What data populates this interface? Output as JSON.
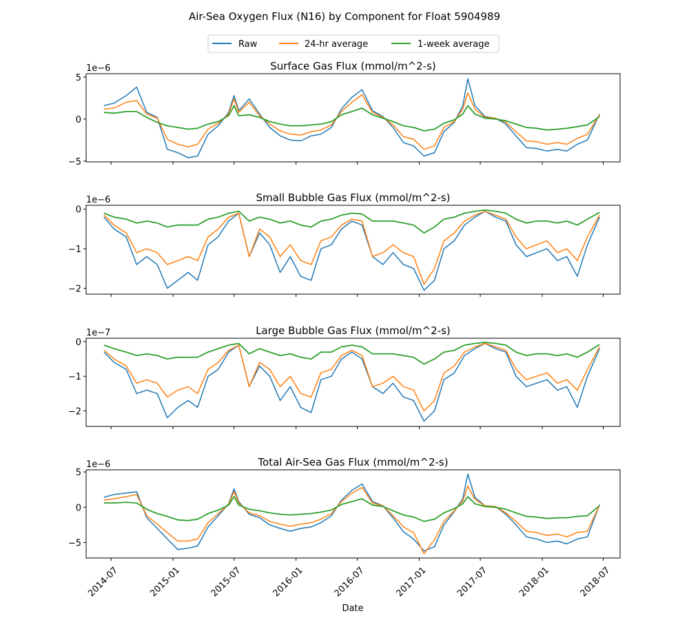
{
  "figure": {
    "title": "Air-Sea Oxygen Flux (N16) by Component for Float 5904989",
    "xlabel": "Date",
    "legend": {
      "placement": "top-center",
      "entries": [
        {
          "name": "Raw",
          "color": "#1f77b4"
        },
        {
          "name": "24-hr average",
          "color": "#ff7f0e"
        },
        {
          "name": "1-week average",
          "color": "#2ca02c"
        }
      ]
    },
    "x_tick_labels": [
      "2014-07",
      "2015-01",
      "2015-07",
      "2016-01",
      "2016-07",
      "2017-01",
      "2017-07",
      "2018-01",
      "2018-07"
    ]
  },
  "chart_data": [
    {
      "type": "line",
      "title": "Surface Gas Flux (mmol/m^2-s)",
      "offset_text": "1e−6",
      "ylim": [
        -5.1,
        5.4
      ],
      "yticks": [
        {
          "value": 5,
          "label": "5"
        },
        {
          "value": 0,
          "label": "0"
        },
        {
          "value": -5,
          "label": "−5"
        }
      ],
      "xlim": [
        "2014-04-18",
        "2018-08-20"
      ],
      "grid": false,
      "x": [
        "2014-06-10",
        "2014-07-10",
        "2014-08-15",
        "2014-09-15",
        "2014-10-15",
        "2014-11-15",
        "2014-12-15",
        "2015-01-15",
        "2015-02-15",
        "2015-03-15",
        "2015-04-15",
        "2015-05-15",
        "2015-06-15",
        "2015-07-01",
        "2015-07-15",
        "2015-08-15",
        "2015-09-15",
        "2015-10-15",
        "2015-11-15",
        "2015-12-15",
        "2016-01-15",
        "2016-02-15",
        "2016-03-15",
        "2016-04-15",
        "2016-05-15",
        "2016-06-15",
        "2016-07-15",
        "2016-08-15",
        "2016-09-15",
        "2016-10-15",
        "2016-11-15",
        "2016-12-15",
        "2017-01-15",
        "2017-02-15",
        "2017-03-15",
        "2017-04-15",
        "2017-05-10",
        "2017-05-25",
        "2017-06-15",
        "2017-07-15",
        "2017-08-15",
        "2017-09-15",
        "2017-10-15",
        "2017-11-15",
        "2017-12-15",
        "2018-01-15",
        "2018-02-15",
        "2018-03-15",
        "2018-04-15",
        "2018-05-15",
        "2018-06-20"
      ],
      "series": [
        {
          "name": "Raw",
          "values": [
            1.6,
            1.9,
            2.8,
            3.8,
            0.8,
            0.2,
            -3.6,
            -4.0,
            -4.6,
            -4.4,
            -1.8,
            -0.8,
            0.8,
            2.8,
            1.0,
            2.4,
            0.6,
            -1.0,
            -2.0,
            -2.5,
            -2.6,
            -2.0,
            -1.8,
            -1.0,
            1.2,
            2.6,
            3.5,
            1.0,
            0.3,
            -1.0,
            -2.8,
            -3.2,
            -4.4,
            -4.0,
            -1.5,
            -0.4,
            1.6,
            4.8,
            1.6,
            0.3,
            0.1,
            -0.6,
            -2.0,
            -3.4,
            -3.5,
            -3.8,
            -3.6,
            -3.8,
            -3.0,
            -2.5,
            0.6
          ]
        },
        {
          "name": "24-hr average",
          "values": [
            1.2,
            1.3,
            2.0,
            2.2,
            0.6,
            0.1,
            -2.4,
            -3.0,
            -3.3,
            -3.0,
            -1.2,
            -0.5,
            0.6,
            2.4,
            0.8,
            2.0,
            0.4,
            -0.6,
            -1.4,
            -1.8,
            -1.9,
            -1.5,
            -1.3,
            -0.7,
            0.9,
            2.0,
            2.9,
            0.8,
            0.2,
            -0.7,
            -2.1,
            -2.4,
            -3.6,
            -3.2,
            -1.0,
            -0.3,
            1.2,
            3.1,
            1.2,
            0.2,
            0.1,
            -0.4,
            -1.5,
            -2.6,
            -2.7,
            -3.0,
            -2.8,
            -3.0,
            -2.3,
            -1.8,
            0.5
          ]
        },
        {
          "name": "1-week average",
          "values": [
            0.8,
            0.7,
            0.9,
            0.9,
            0.2,
            -0.4,
            -0.8,
            -1.0,
            -1.2,
            -1.1,
            -0.6,
            -0.3,
            0.4,
            1.6,
            0.4,
            0.5,
            0.2,
            -0.3,
            -0.6,
            -0.8,
            -0.8,
            -0.7,
            -0.6,
            -0.3,
            0.5,
            0.9,
            1.3,
            0.5,
            0.1,
            -0.3,
            -0.8,
            -1.0,
            -1.4,
            -1.2,
            -0.5,
            -0.1,
            0.6,
            1.6,
            0.6,
            0.1,
            0.0,
            -0.2,
            -0.6,
            -1.0,
            -1.1,
            -1.3,
            -1.2,
            -1.1,
            -0.9,
            -0.7,
            0.3
          ]
        }
      ]
    },
    {
      "type": "line",
      "title": "Small Bubble Gas Flux (mmol/m^2-s)",
      "offset_text": "1e−6",
      "ylim": [
        -2.15,
        0.1
      ],
      "yticks": [
        {
          "value": 0,
          "label": "0"
        },
        {
          "value": -1,
          "label": "−1"
        },
        {
          "value": -2,
          "label": "−2"
        }
      ],
      "xlim": [
        "2014-04-18",
        "2018-08-20"
      ],
      "grid": false,
      "x": [
        "2014-06-10",
        "2014-07-10",
        "2014-08-15",
        "2014-09-15",
        "2014-10-15",
        "2014-11-15",
        "2014-12-15",
        "2015-01-15",
        "2015-02-15",
        "2015-03-15",
        "2015-04-15",
        "2015-05-15",
        "2015-06-15",
        "2015-07-15",
        "2015-08-15",
        "2015-09-15",
        "2015-10-15",
        "2015-11-15",
        "2015-12-15",
        "2016-01-15",
        "2016-02-15",
        "2016-03-15",
        "2016-04-15",
        "2016-05-15",
        "2016-06-15",
        "2016-07-15",
        "2016-08-15",
        "2016-09-15",
        "2016-10-15",
        "2016-11-15",
        "2016-12-15",
        "2017-01-15",
        "2017-02-15",
        "2017-03-15",
        "2017-04-15",
        "2017-05-15",
        "2017-06-15",
        "2017-07-15",
        "2017-08-15",
        "2017-09-15",
        "2017-10-15",
        "2017-11-15",
        "2017-12-15",
        "2018-01-15",
        "2018-02-15",
        "2018-03-15",
        "2018-04-15",
        "2018-05-15",
        "2018-06-20"
      ],
      "series": [
        {
          "name": "Raw",
          "values": [
            -0.2,
            -0.5,
            -0.7,
            -1.4,
            -1.2,
            -1.4,
            -2.0,
            -1.8,
            -1.6,
            -1.8,
            -0.9,
            -0.7,
            -0.3,
            -0.1,
            -1.2,
            -0.6,
            -0.9,
            -1.6,
            -1.2,
            -1.7,
            -1.8,
            -1.0,
            -0.9,
            -0.5,
            -0.3,
            -0.4,
            -1.2,
            -1.4,
            -1.1,
            -1.4,
            -1.5,
            -2.05,
            -1.8,
            -1.0,
            -0.8,
            -0.4,
            -0.2,
            -0.05,
            -0.2,
            -0.3,
            -0.9,
            -1.2,
            -1.1,
            -1.0,
            -1.3,
            -1.2,
            -1.7,
            -0.9,
            -0.2
          ]
        },
        {
          "name": "24-hr average",
          "values": [
            -0.15,
            -0.4,
            -0.6,
            -1.1,
            -1.0,
            -1.1,
            -1.4,
            -1.3,
            -1.2,
            -1.3,
            -0.7,
            -0.5,
            -0.2,
            -0.1,
            -1.2,
            -0.5,
            -0.7,
            -1.2,
            -0.9,
            -1.3,
            -1.4,
            -0.8,
            -0.7,
            -0.4,
            -0.25,
            -0.3,
            -1.2,
            -1.1,
            -0.9,
            -1.1,
            -1.2,
            -1.9,
            -1.5,
            -0.8,
            -0.6,
            -0.3,
            -0.15,
            -0.05,
            -0.15,
            -0.25,
            -0.7,
            -1.0,
            -0.9,
            -0.8,
            -1.1,
            -1.0,
            -1.3,
            -0.7,
            -0.15
          ]
        },
        {
          "name": "1-week average",
          "values": [
            -0.1,
            -0.2,
            -0.25,
            -0.35,
            -0.3,
            -0.35,
            -0.45,
            -0.4,
            -0.4,
            -0.4,
            -0.25,
            -0.2,
            -0.1,
            -0.05,
            -0.3,
            -0.2,
            -0.25,
            -0.35,
            -0.3,
            -0.4,
            -0.45,
            -0.3,
            -0.25,
            -0.15,
            -0.1,
            -0.12,
            -0.3,
            -0.3,
            -0.3,
            -0.35,
            -0.4,
            -0.6,
            -0.45,
            -0.25,
            -0.2,
            -0.1,
            -0.05,
            -0.02,
            -0.05,
            -0.1,
            -0.25,
            -0.35,
            -0.3,
            -0.3,
            -0.35,
            -0.3,
            -0.4,
            -0.25,
            -0.08
          ]
        }
      ]
    },
    {
      "type": "line",
      "title": "Large Bubble Gas Flux (mmol/m^2-s)",
      "offset_text": "1e−7",
      "ylim": [
        -2.45,
        0.1
      ],
      "yticks": [
        {
          "value": 0,
          "label": "0"
        },
        {
          "value": -1,
          "label": "−1"
        },
        {
          "value": -2,
          "label": "−2"
        }
      ],
      "xlim": [
        "2014-04-18",
        "2018-08-20"
      ],
      "grid": false,
      "x": [
        "2014-06-10",
        "2014-07-10",
        "2014-08-15",
        "2014-09-15",
        "2014-10-15",
        "2014-11-15",
        "2014-12-15",
        "2015-01-15",
        "2015-02-15",
        "2015-03-15",
        "2015-04-15",
        "2015-05-15",
        "2015-06-15",
        "2015-07-15",
        "2015-08-15",
        "2015-09-15",
        "2015-10-15",
        "2015-11-15",
        "2015-12-15",
        "2016-01-15",
        "2016-02-15",
        "2016-03-15",
        "2016-04-15",
        "2016-05-15",
        "2016-06-15",
        "2016-07-15",
        "2016-08-15",
        "2016-09-15",
        "2016-10-15",
        "2016-11-15",
        "2016-12-15",
        "2017-01-15",
        "2017-02-15",
        "2017-03-15",
        "2017-04-15",
        "2017-05-15",
        "2017-06-15",
        "2017-07-15",
        "2017-08-15",
        "2017-09-15",
        "2017-10-15",
        "2017-11-15",
        "2017-12-15",
        "2018-01-15",
        "2018-02-15",
        "2018-03-15",
        "2018-04-15",
        "2018-05-15",
        "2018-06-20"
      ],
      "series": [
        {
          "name": "Raw",
          "values": [
            -0.3,
            -0.6,
            -0.8,
            -1.5,
            -1.4,
            -1.5,
            -2.2,
            -1.9,
            -1.7,
            -1.9,
            -1.0,
            -0.8,
            -0.3,
            -0.1,
            -1.3,
            -0.7,
            -1.0,
            -1.7,
            -1.3,
            -1.9,
            -2.05,
            -1.1,
            -1.0,
            -0.5,
            -0.3,
            -0.5,
            -1.3,
            -1.5,
            -1.2,
            -1.6,
            -1.7,
            -2.3,
            -2.0,
            -1.1,
            -0.9,
            -0.4,
            -0.2,
            -0.05,
            -0.2,
            -0.3,
            -1.0,
            -1.3,
            -1.2,
            -1.1,
            -1.4,
            -1.3,
            -1.9,
            -1.0,
            -0.2
          ]
        },
        {
          "name": "24-hr average",
          "values": [
            -0.25,
            -0.5,
            -0.7,
            -1.2,
            -1.1,
            -1.2,
            -1.6,
            -1.4,
            -1.3,
            -1.5,
            -0.8,
            -0.6,
            -0.25,
            -0.1,
            -1.3,
            -0.6,
            -0.8,
            -1.3,
            -1.0,
            -1.5,
            -1.6,
            -0.9,
            -0.8,
            -0.4,
            -0.25,
            -0.4,
            -1.3,
            -1.2,
            -1.0,
            -1.3,
            -1.4,
            -2.0,
            -1.7,
            -0.9,
            -0.7,
            -0.3,
            -0.15,
            -0.05,
            -0.15,
            -0.25,
            -0.8,
            -1.1,
            -1.0,
            -0.9,
            -1.2,
            -1.1,
            -1.4,
            -0.8,
            -0.15
          ]
        },
        {
          "name": "1-week average",
          "values": [
            -0.1,
            -0.2,
            -0.3,
            -0.4,
            -0.35,
            -0.4,
            -0.5,
            -0.45,
            -0.45,
            -0.45,
            -0.3,
            -0.2,
            -0.1,
            -0.05,
            -0.35,
            -0.2,
            -0.3,
            -0.4,
            -0.35,
            -0.45,
            -0.5,
            -0.3,
            -0.3,
            -0.15,
            -0.1,
            -0.15,
            -0.35,
            -0.35,
            -0.35,
            -0.4,
            -0.45,
            -0.65,
            -0.5,
            -0.3,
            -0.25,
            -0.1,
            -0.05,
            -0.02,
            -0.05,
            -0.1,
            -0.3,
            -0.4,
            -0.35,
            -0.35,
            -0.4,
            -0.35,
            -0.45,
            -0.3,
            -0.08
          ]
        }
      ]
    },
    {
      "type": "line",
      "title": "Total Air-Sea Gas Flux (mmol/m^2-s)",
      "offset_text": "1e−6",
      "ylim": [
        -7.2,
        5.3
      ],
      "yticks": [
        {
          "value": 5,
          "label": "5"
        },
        {
          "value": 0,
          "label": "0"
        },
        {
          "value": -5,
          "label": "−5"
        }
      ],
      "xlim": [
        "2014-04-18",
        "2018-08-20"
      ],
      "grid": false,
      "x": [
        "2014-06-10",
        "2014-07-10",
        "2014-08-15",
        "2014-09-15",
        "2014-10-15",
        "2014-11-15",
        "2014-12-15",
        "2015-01-15",
        "2015-02-15",
        "2015-03-15",
        "2015-04-15",
        "2015-05-15",
        "2015-06-15",
        "2015-07-01",
        "2015-07-15",
        "2015-08-15",
        "2015-09-15",
        "2015-10-15",
        "2015-11-15",
        "2015-12-15",
        "2016-01-15",
        "2016-02-15",
        "2016-03-15",
        "2016-04-15",
        "2016-05-15",
        "2016-06-15",
        "2016-07-15",
        "2016-08-15",
        "2016-09-15",
        "2016-10-15",
        "2016-11-15",
        "2016-12-15",
        "2017-01-15",
        "2017-02-15",
        "2017-03-15",
        "2017-04-15",
        "2017-05-10",
        "2017-05-25",
        "2017-06-15",
        "2017-07-15",
        "2017-08-15",
        "2017-09-15",
        "2017-10-15",
        "2017-11-15",
        "2017-12-15",
        "2018-01-15",
        "2018-02-15",
        "2018-03-15",
        "2018-04-15",
        "2018-05-15",
        "2018-06-20"
      ],
      "series": [
        {
          "name": "Raw",
          "values": [
            1.4,
            1.8,
            2.0,
            2.2,
            -1.5,
            -3.0,
            -4.5,
            -6.0,
            -5.8,
            -5.5,
            -2.8,
            -1.2,
            0.5,
            2.6,
            0.8,
            -1.0,
            -1.5,
            -2.5,
            -3.0,
            -3.4,
            -3.0,
            -2.8,
            -2.2,
            -1.2,
            1.0,
            2.4,
            3.3,
            0.8,
            0.2,
            -1.5,
            -3.5,
            -4.5,
            -6.2,
            -5.6,
            -2.5,
            -0.6,
            1.2,
            4.7,
            1.4,
            0.2,
            0.1,
            -1.0,
            -2.5,
            -4.2,
            -4.5,
            -5.0,
            -4.8,
            -5.2,
            -4.5,
            -4.2,
            0.4
          ]
        },
        {
          "name": "24-hr average",
          "values": [
            1.0,
            1.2,
            1.5,
            1.8,
            -1.2,
            -2.4,
            -3.6,
            -4.8,
            -4.8,
            -4.5,
            -2.2,
            -0.9,
            0.4,
            2.2,
            0.6,
            -0.8,
            -1.2,
            -2.0,
            -2.4,
            -2.7,
            -2.4,
            -2.2,
            -1.7,
            -0.9,
            0.8,
            2.0,
            2.8,
            0.6,
            0.2,
            -1.2,
            -2.8,
            -3.6,
            -6.6,
            -4.6,
            -2.0,
            -0.5,
            0.9,
            3.0,
            1.1,
            0.2,
            0.1,
            -0.8,
            -2.0,
            -3.4,
            -3.6,
            -4.0,
            -3.8,
            -4.2,
            -3.6,
            -3.4,
            0.3
          ]
        },
        {
          "name": "1-week average",
          "values": [
            0.6,
            0.6,
            0.7,
            0.6,
            -0.3,
            -0.9,
            -1.3,
            -1.8,
            -1.9,
            -1.7,
            -0.9,
            -0.4,
            0.3,
            1.5,
            0.3,
            -0.3,
            -0.5,
            -0.8,
            -1.0,
            -1.1,
            -1.0,
            -0.9,
            -0.7,
            -0.4,
            0.4,
            0.8,
            1.2,
            0.3,
            0.1,
            -0.5,
            -1.1,
            -1.4,
            -2.0,
            -1.7,
            -0.8,
            -0.2,
            0.5,
            1.5,
            0.5,
            0.1,
            0.0,
            -0.3,
            -0.8,
            -1.3,
            -1.4,
            -1.6,
            -1.5,
            -1.5,
            -1.3,
            -1.2,
            0.2
          ]
        }
      ]
    }
  ]
}
